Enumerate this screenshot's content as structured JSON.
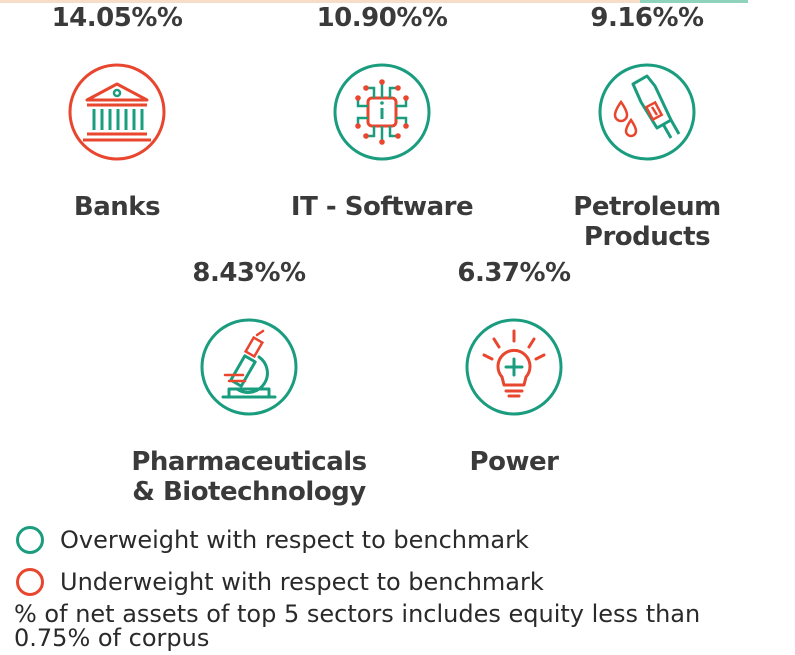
{
  "colors": {
    "overweight": "#1a9c7f",
    "underweight": "#e8462e",
    "topbar_peach": "#f7dcc8",
    "topbar_mint": "#8fd3bd"
  },
  "sectors": [
    {
      "name": "Banks",
      "percent": "14.05%%",
      "weight": "underweight",
      "icon": "bank-icon"
    },
    {
      "name": "IT - Software",
      "percent": "10.90%%",
      "weight": "overweight",
      "icon": "chip-icon"
    },
    {
      "name_line1": "Petroleum",
      "name_line2": "Products",
      "percent": "9.16%%",
      "weight": "overweight",
      "icon": "fuel-nozzle-icon"
    },
    {
      "name_line1": "Pharmaceuticals",
      "name_line2": "& Biotechnology",
      "percent": "8.43%%",
      "weight": "overweight",
      "icon": "microscope-icon"
    },
    {
      "name": "Power",
      "percent": "6.37%%",
      "weight": "overweight",
      "icon": "lightbulb-icon"
    }
  ],
  "legend": {
    "overweight_label": "Overweight with respect to benchmark",
    "underweight_label": "Underweight with respect to benchmark"
  },
  "footnote": {
    "line1": "% of net assets of top 5 sectors includes equity less than",
    "line2": "0.75% of corpus"
  }
}
